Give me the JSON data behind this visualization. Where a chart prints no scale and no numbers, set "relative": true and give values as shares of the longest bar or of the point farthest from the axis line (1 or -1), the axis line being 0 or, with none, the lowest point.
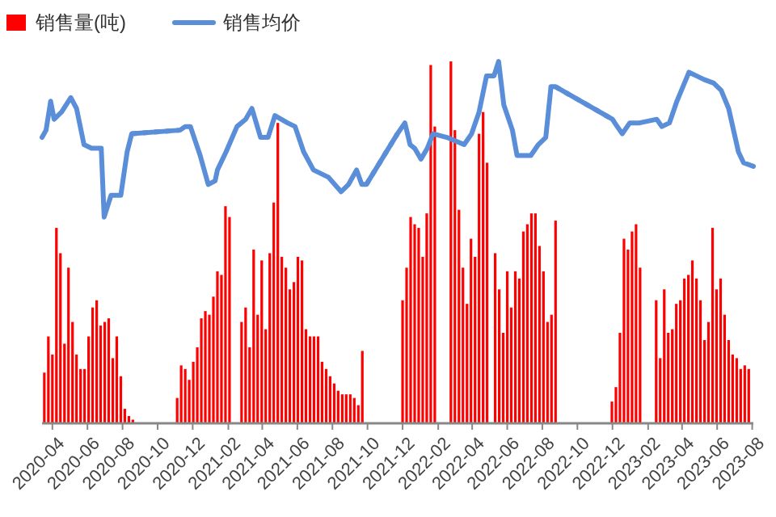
{
  "chart_data": {
    "type": "bar",
    "relative": true,
    "legend": "top left",
    "xlim": [
      "2020-03-14",
      "2023-08-03"
    ],
    "xticks": [
      "2020-04",
      "2020-06",
      "2020-08",
      "2020-10",
      "2020-12",
      "2021-02",
      "2021-04",
      "2021-06",
      "2021-08",
      "2021-10",
      "2021-12",
      "2022-02",
      "2022-04",
      "2022-06",
      "2022-08",
      "2022-10",
      "2022-12",
      "2023-02",
      "2023-04",
      "2023-06",
      "2023-08"
    ],
    "series": [
      {
        "name": "销售量(吨)",
        "color": "#ff0000",
        "x": [
          "2020-03-18",
          "2020-03-25",
          "2020-04-01",
          "2020-04-08",
          "2020-04-15",
          "2020-04-22",
          "2020-04-29",
          "2020-05-06",
          "2020-05-13",
          "2020-05-20",
          "2020-05-27",
          "2020-06-03",
          "2020-06-10",
          "2020-06-17",
          "2020-06-24",
          "2020-07-01",
          "2020-07-08",
          "2020-07-15",
          "2020-07-22",
          "2020-07-29",
          "2020-08-05",
          "2020-08-12",
          "2020-08-19",
          "2020-11-04",
          "2020-11-11",
          "2020-11-18",
          "2020-11-25",
          "2020-12-02",
          "2020-12-09",
          "2020-12-16",
          "2020-12-23",
          "2020-12-30",
          "2021-01-06",
          "2021-01-13",
          "2021-01-20",
          "2021-01-27",
          "2021-02-03",
          "2021-02-24",
          "2021-03-03",
          "2021-03-10",
          "2021-03-17",
          "2021-03-24",
          "2021-03-31",
          "2021-04-07",
          "2021-04-14",
          "2021-04-21",
          "2021-04-28",
          "2021-05-05",
          "2021-05-12",
          "2021-05-19",
          "2021-05-26",
          "2021-06-02",
          "2021-06-09",
          "2021-06-16",
          "2021-06-23",
          "2021-06-30",
          "2021-07-07",
          "2021-07-14",
          "2021-07-21",
          "2021-07-28",
          "2021-08-04",
          "2021-08-11",
          "2021-08-18",
          "2021-08-25",
          "2021-09-01",
          "2021-09-08",
          "2021-09-15",
          "2021-09-22",
          "2021-12-01",
          "2021-12-08",
          "2021-12-15",
          "2021-12-22",
          "2021-12-29",
          "2022-01-05",
          "2022-01-12",
          "2022-01-19",
          "2022-01-26",
          "2022-02-23",
          "2022-03-02",
          "2022-03-09",
          "2022-03-16",
          "2022-03-23",
          "2022-03-30",
          "2022-04-06",
          "2022-04-13",
          "2022-04-20",
          "2022-04-27",
          "2022-05-11",
          "2022-05-18",
          "2022-05-25",
          "2022-06-01",
          "2022-06-08",
          "2022-06-15",
          "2022-06-22",
          "2022-06-29",
          "2022-07-06",
          "2022-07-13",
          "2022-07-20",
          "2022-07-27",
          "2022-08-03",
          "2022-08-10",
          "2022-08-17",
          "2022-08-24",
          "2022-11-30",
          "2022-12-07",
          "2022-12-14",
          "2022-12-21",
          "2022-12-28",
          "2023-01-04",
          "2023-01-11",
          "2023-01-18",
          "2023-02-15",
          "2023-02-22",
          "2023-03-01",
          "2023-03-08",
          "2023-03-15",
          "2023-03-22",
          "2023-03-29",
          "2023-04-05",
          "2023-04-12",
          "2023-04-19",
          "2023-04-26",
          "2023-05-03",
          "2023-05-10",
          "2023-05-17",
          "2023-05-24",
          "2023-05-31",
          "2023-06-07",
          "2023-06-14",
          "2023-06-21",
          "2023-06-28",
          "2023-07-05",
          "2023-07-12",
          "2023-07-19",
          "2023-07-26"
        ],
        "values": [
          0.14,
          0.24,
          0.19,
          0.54,
          0.47,
          0.22,
          0.43,
          0.28,
          0.19,
          0.15,
          0.15,
          0.24,
          0.32,
          0.34,
          0.27,
          0.28,
          0.29,
          0.18,
          0.24,
          0.13,
          0.04,
          0.02,
          0.01,
          0.07,
          0.16,
          0.15,
          0.12,
          0.17,
          0.21,
          0.29,
          0.31,
          0.3,
          0.35,
          0.42,
          0.41,
          0.6,
          0.57,
          0.28,
          0.32,
          0.21,
          0.48,
          0.3,
          0.45,
          0.26,
          0.47,
          0.61,
          0.83,
          0.46,
          0.43,
          0.37,
          0.39,
          0.46,
          0.45,
          0.26,
          0.24,
          0.24,
          0.24,
          0.17,
          0.15,
          0.13,
          0.11,
          0.09,
          0.08,
          0.08,
          0.08,
          0.07,
          0.05,
          0.2,
          0.34,
          0.43,
          0.57,
          0.55,
          0.54,
          0.46,
          0.58,
          0.99,
          0.82,
          1.0,
          0.81,
          0.59,
          0.43,
          0.33,
          0.51,
          0.46,
          0.8,
          0.86,
          0.72,
          0.47,
          0.37,
          0.25,
          0.42,
          0.32,
          0.42,
          0.4,
          0.53,
          0.55,
          0.58,
          0.58,
          0.49,
          0.42,
          0.28,
          0.3,
          0.56,
          0.06,
          0.1,
          0.25,
          0.51,
          0.48,
          0.53,
          0.55,
          0.43,
          0.34,
          0.18,
          0.37,
          0.25,
          0.26,
          0.33,
          0.34,
          0.4,
          0.41,
          0.45,
          0.4,
          0.34,
          0.23,
          0.28,
          0.54,
          0.37,
          0.4,
          0.3,
          0.23,
          0.19,
          0.18,
          0.15,
          0.16,
          0.15
        ]
      },
      {
        "name": "销售均价",
        "type": "line",
        "color": "#5a8ed8",
        "x": [
          "2020-03-14",
          "2020-03-21",
          "2020-03-29",
          "2020-04-04",
          "2020-04-17",
          "2020-05-03",
          "2020-05-13",
          "2020-05-26",
          "2020-06-08",
          "2020-06-25",
          "2020-06-30",
          "2020-07-12",
          "2020-07-29",
          "2020-08-09",
          "2020-08-17",
          "2020-11-09",
          "2020-11-18",
          "2020-11-27",
          "2020-12-14",
          "2020-12-28",
          "2021-01-09",
          "2021-01-13",
          "2021-01-28",
          "2021-02-16",
          "2021-03-03",
          "2021-03-14",
          "2021-03-29",
          "2021-04-11",
          "2021-04-23",
          "2021-05-15",
          "2021-05-28",
          "2021-06-12",
          "2021-06-29",
          "2021-07-25",
          "2021-08-16",
          "2021-08-29",
          "2021-09-12",
          "2021-09-21",
          "2021-09-29",
          "2021-11-22",
          "2021-12-05",
          "2021-12-14",
          "2021-12-22",
          "2022-01-02",
          "2022-01-13",
          "2022-01-23",
          "2022-02-16",
          "2022-03-18",
          "2022-03-31",
          "2022-04-13",
          "2022-04-26",
          "2022-05-09",
          "2022-05-17",
          "2022-05-26",
          "2022-06-10",
          "2022-06-18",
          "2022-07-12",
          "2022-07-25",
          "2022-08-07",
          "2022-08-16",
          "2022-08-24",
          "2022-12-01",
          "2022-12-05",
          "2022-12-18",
          "2022-12-31",
          "2023-01-17",
          "2023-02-16",
          "2023-02-25",
          "2023-03-10",
          "2023-03-23",
          "2023-04-13",
          "2023-04-26",
          "2023-05-09",
          "2023-05-26",
          "2023-06-08",
          "2023-06-21",
          "2023-07-08",
          "2023-07-17",
          "2023-08-03"
        ],
        "values": [
          0.79,
          0.81,
          0.89,
          0.84,
          0.86,
          0.9,
          0.87,
          0.77,
          0.76,
          0.76,
          0.57,
          0.63,
          0.63,
          0.75,
          0.8,
          0.81,
          0.82,
          0.82,
          0.74,
          0.66,
          0.67,
          0.7,
          0.75,
          0.82,
          0.84,
          0.87,
          0.79,
          0.79,
          0.85,
          0.83,
          0.82,
          0.75,
          0.7,
          0.68,
          0.64,
          0.66,
          0.7,
          0.66,
          0.66,
          0.8,
          0.83,
          0.77,
          0.76,
          0.73,
          0.76,
          0.8,
          0.79,
          0.77,
          0.8,
          0.86,
          0.96,
          0.96,
          1.0,
          0.88,
          0.81,
          0.74,
          0.74,
          0.77,
          0.79,
          0.93,
          0.93,
          0.84,
          0.83,
          0.8,
          0.83,
          0.83,
          0.84,
          0.82,
          0.83,
          0.89,
          0.97,
          0.96,
          0.95,
          0.94,
          0.92,
          0.87,
          0.75,
          0.72,
          0.71
        ]
      },
      {
        "type": "line",
        "color": "#5a8ed8",
        "line_style": "dotted",
        "x": [
          "2020-08-17",
          "2020-11-09"
        ],
        "values": [
          0.8,
          0.81
        ]
      },
      {
        "type": "line",
        "color": "#5a8ed8",
        "line_style": "dotted",
        "x": [
          "2021-09-29",
          "2021-11-22"
        ],
        "values": [
          0.66,
          0.8
        ]
      },
      {
        "type": "line",
        "color": "#5a8ed8",
        "line_style": "dotted",
        "x": [
          "2022-08-24",
          "2022-12-01"
        ],
        "values": [
          0.93,
          0.84
        ]
      }
    ]
  }
}
